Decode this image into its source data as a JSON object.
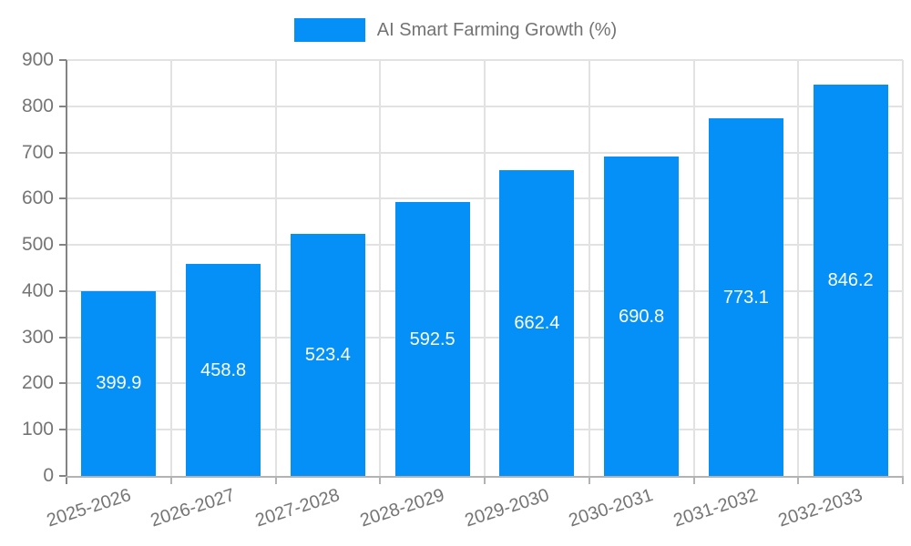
{
  "chart_data": {
    "type": "bar",
    "title": "AI Smart Farming Growth (%)",
    "legend_label": "AI Smart Farming Growth (%)",
    "legend_position": "top-center",
    "categories": [
      "2025-2026",
      "2026-2027",
      "2027-2028",
      "2028-2029",
      "2029-2030",
      "2030-2031",
      "2031-2032",
      "2032-2033"
    ],
    "values": [
      399.9,
      458.8,
      523.4,
      592.5,
      662.4,
      690.8,
      773.1,
      846.2
    ],
    "value_labels": [
      "399.9",
      "458.8",
      "523.4",
      "592.5",
      "662.4",
      "690.8",
      "773.1",
      "846.2"
    ],
    "xlabel": "",
    "ylabel": "",
    "ylim": [
      0,
      900
    ],
    "ytick_step": 100,
    "ytick_labels": [
      "0",
      "100",
      "200",
      "300",
      "400",
      "500",
      "600",
      "700",
      "800",
      "900"
    ],
    "grid": true,
    "colors": {
      "bar": "#0590f8",
      "axis_text": "#757575",
      "grid_line": "#e2e2e2",
      "y_axis_line": "#848484",
      "x_axis_line": "#b3b3b3",
      "tick_mark": "#9a9a9a",
      "value_label": "#ffffff",
      "background": "#ffffff"
    }
  }
}
